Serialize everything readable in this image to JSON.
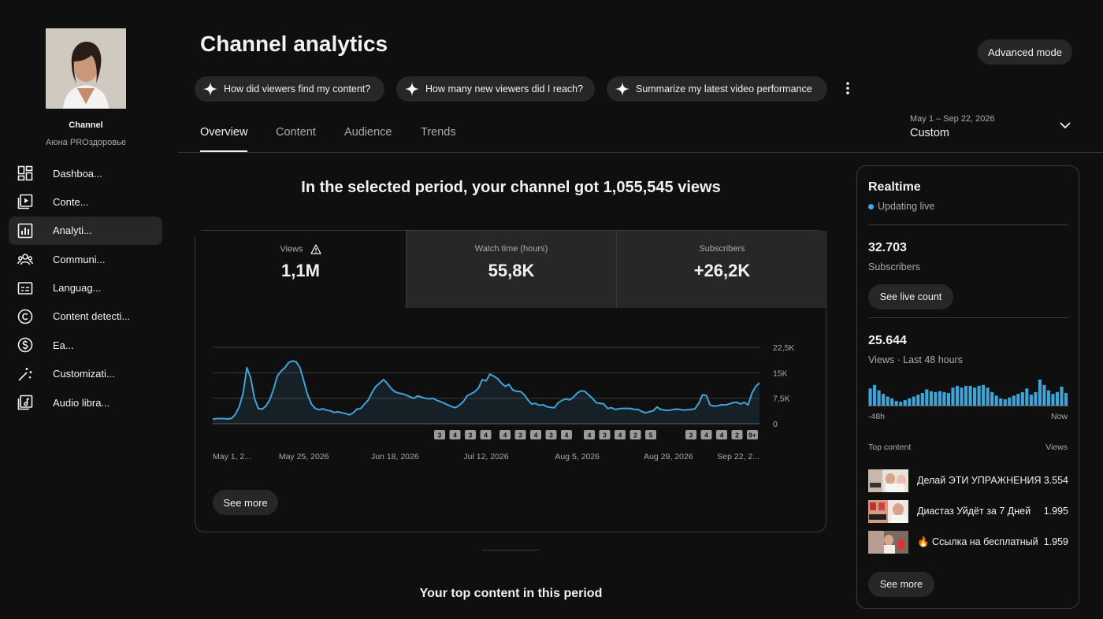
{
  "channel": {
    "title": "Channel",
    "name": "Аюна PROздоровье"
  },
  "sidebar": {
    "items": [
      {
        "label": "Dashboa...",
        "icon": "dashboard-icon"
      },
      {
        "label": "Conte...",
        "icon": "content-icon"
      },
      {
        "label": "Analyti...",
        "icon": "analytics-icon",
        "active": true
      },
      {
        "label": "Communi...",
        "icon": "community-icon"
      },
      {
        "label": "Languag...",
        "icon": "subtitles-icon"
      },
      {
        "label": "Content detecti...",
        "icon": "copyright-icon"
      },
      {
        "label": "Ea...",
        "icon": "earn-icon"
      },
      {
        "label": "Customizati...",
        "icon": "customization-icon"
      },
      {
        "label": "Audio libra...",
        "icon": "audio-library-icon"
      }
    ]
  },
  "header": {
    "title": "Channel analytics",
    "advanced_mode": "Advanced mode",
    "prompts": [
      "How did viewers find my content?",
      "How many new viewers did I reach?",
      "Summarize my latest video performance"
    ],
    "tabs": [
      "Overview",
      "Content",
      "Audience",
      "Trends"
    ],
    "active_tab": "Overview",
    "date_range": {
      "range": "May 1 – Sep 22, 2026",
      "label": "Custom"
    }
  },
  "overview": {
    "headline": "In the selected period, your channel got 1,055,545 views",
    "metrics": [
      {
        "label": "Views",
        "value": "1,1M",
        "warning": true
      },
      {
        "label": "Watch time (hours)",
        "value": "55,8K"
      },
      {
        "label": "Subscribers",
        "value": "+26,2K"
      }
    ],
    "see_more": "See more",
    "top_content_title": "Your top content in this period"
  },
  "chart_data": {
    "type": "area",
    "series_color": "#41a4d8",
    "ytick_labels": [
      "22,5K",
      "15K",
      "7,5K",
      "0"
    ],
    "yticks": [
      22500,
      15000,
      7500,
      0
    ],
    "ylim": [
      0,
      22500
    ],
    "xtick_labels": [
      "May 1, 2...",
      "May 25, 2026",
      "Jun 18, 2026",
      "Jul 12, 2026",
      "Aug 5, 2026",
      "Aug 29, 2026",
      "Sep 22, 2..."
    ],
    "xtick_days": [
      0,
      24,
      48,
      72,
      96,
      120,
      144
    ],
    "grid": true,
    "values": [
      1300,
      1500,
      1500,
      1500,
      1400,
      1600,
      2800,
      5000,
      9000,
      16500,
      13500,
      7500,
      4500,
      4300,
      5200,
      7000,
      10000,
      14000,
      15500,
      16500,
      18000,
      18500,
      18200,
      16500,
      12500,
      8500,
      5800,
      4500,
      4100,
      4400,
      4000,
      3800,
      3300,
      3500,
      3200,
      3000,
      2600,
      3200,
      4300,
      4500,
      5800,
      7000,
      9300,
      11000,
      12000,
      13000,
      11800,
      10400,
      9400,
      9000,
      8800,
      8400,
      7900,
      7500,
      8200,
      7800,
      7500,
      7300,
      7500,
      6900,
      6500,
      6000,
      5500,
      5000,
      4700,
      5500,
      6500,
      8200,
      8800,
      9400,
      10500,
      13000,
      12600,
      14600,
      14000,
      13300,
      12000,
      11000,
      11600,
      10000,
      9500,
      9500,
      8600,
      7000,
      5800,
      6000,
      5400,
      5600,
      5000,
      4800,
      4700,
      6200,
      6900,
      7300,
      7000,
      7800,
      9000,
      9700,
      9500,
      8500,
      7500,
      6200,
      6000,
      5800,
      4500,
      4700,
      4200,
      4400,
      4500,
      4500,
      4500,
      4200,
      4200,
      3600,
      3200,
      3500,
      3800,
      4900,
      4200,
      4000,
      3900,
      4100,
      4300,
      4200,
      4000,
      4100,
      4200,
      4400,
      6000,
      8500,
      8300,
      5500,
      5200,
      5300,
      5600,
      5500,
      5800,
      6200,
      6300,
      5800,
      6300,
      5500,
      9000,
      11000,
      12000
    ],
    "markers": {
      "baseline_groups": [
        {
          "labels": [
            "3",
            "4",
            "3",
            "4"
          ]
        },
        {
          "labels": [
            "4",
            "3",
            "4",
            "3",
            "4"
          ]
        },
        {
          "labels": [
            "4",
            "3",
            "4",
            "2",
            "5"
          ]
        },
        {
          "labels": [
            "3",
            "4",
            "4",
            "2",
            "9+"
          ]
        }
      ]
    }
  },
  "realtime": {
    "title": "Realtime",
    "status": "Updating live",
    "subscribers_value": "32.703",
    "subscribers_label": "Subscribers",
    "see_live_count": "See live count",
    "views_value": "25.644",
    "views_label": "Views · Last 48 hours",
    "axis_left": "-48h",
    "axis_right": "Now",
    "bars": [
      20,
      24,
      18,
      14,
      11,
      9,
      6,
      5,
      7,
      9,
      11,
      13,
      15,
      19,
      17,
      16,
      17,
      16,
      15,
      21,
      23,
      21,
      23,
      23,
      21,
      23,
      24,
      21,
      16,
      12,
      9,
      8,
      10,
      12,
      14,
      16,
      20,
      13,
      16,
      30,
      24,
      18,
      14,
      16,
      22,
      15
    ],
    "top_content_label": "Top content",
    "views_header": "Views",
    "top_content": [
      {
        "title": "Делай ЭТИ УПРАЖНЕНИЯ",
        "views": "3.554"
      },
      {
        "title": "Диастаз Уйдёт за 7 Дней",
        "views": "1.995"
      },
      {
        "title": "🔥 Ссылка на бесплатный",
        "views": "1.959"
      }
    ],
    "see_more": "See more"
  }
}
